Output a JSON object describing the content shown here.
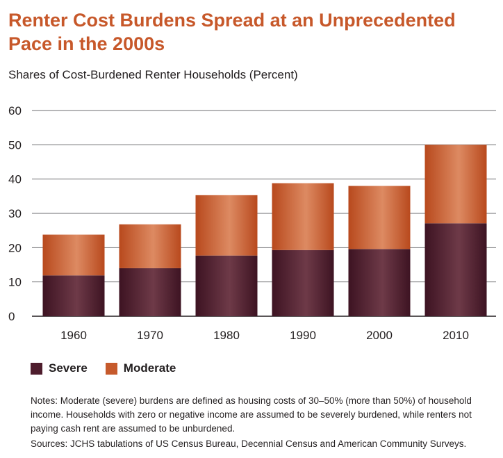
{
  "header": {
    "title": "Renter Cost Burdens Spread at an Unprecedented Pace in the 2000s",
    "subtitle": "Shares of Cost-Burdened Renter Households (Percent)"
  },
  "legend": {
    "items": [
      {
        "label": "Severe",
        "color": "#4e1d2d"
      },
      {
        "label": "Moderate",
        "color": "#c65a2c"
      }
    ]
  },
  "footer": {
    "notes": "Notes: Moderate (severe) burdens are defined as housing costs of 30–50% (more than 50%) of household income. Households with zero or negative income are assumed to be severely burdened, while renters not paying cash rent are assumed to be unburdened.",
    "sources": "Sources: JCHS tabulations of US Census Bureau, Decennial Census and American Community Surveys."
  },
  "chart_data": {
    "type": "bar",
    "stacked": true,
    "title": "Renter Cost Burdens Spread at an Unprecedented Pace in the 2000s",
    "subtitle": "Shares of Cost-Burdened Renter Households (Percent)",
    "categories": [
      "1960",
      "1970",
      "1980",
      "1990",
      "2000",
      "2010"
    ],
    "series": [
      {
        "name": "Severe",
        "color": "#4e1d2d",
        "values": [
          11.9,
          14.0,
          17.7,
          19.3,
          19.6,
          27.1
        ]
      },
      {
        "name": "Moderate",
        "color": "#c65a2c",
        "values": [
          11.9,
          12.8,
          17.6,
          19.5,
          18.4,
          22.9
        ]
      }
    ],
    "yticks": [
      "0",
      "10",
      "20",
      "30",
      "40",
      "50",
      "60"
    ],
    "ylim": [
      0,
      60
    ],
    "grid": true,
    "legend": "bottom-left"
  }
}
